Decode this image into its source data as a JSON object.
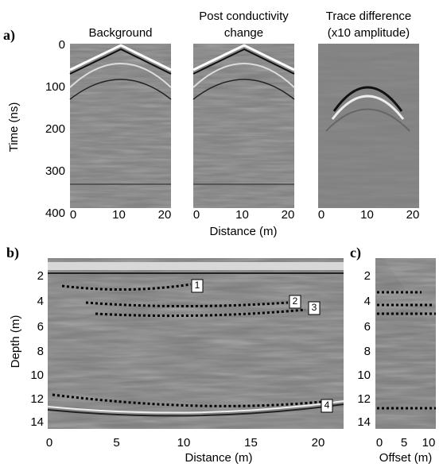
{
  "panel_a": {
    "label": "a)",
    "y_label": "Time (ns)",
    "x_label": "Distance (m)",
    "y_ticks": [
      "0",
      "100",
      "200",
      "300",
      "400"
    ],
    "panels": [
      {
        "title": [
          "Background"
        ],
        "x_ticks": [
          "0",
          "10",
          "20"
        ]
      },
      {
        "title": [
          "Post conductivity",
          "change"
        ],
        "x_ticks": [
          "0",
          "10",
          "20"
        ]
      },
      {
        "title": [
          "Trace difference",
          "(x10 amplitude)"
        ],
        "x_ticks": [
          "0",
          "10",
          "20"
        ]
      }
    ]
  },
  "panel_b": {
    "label": "b)",
    "y_label": "Depth (m)",
    "x_label": "Distance (m)",
    "y_ticks": [
      "2",
      "4",
      "6",
      "8",
      "10",
      "12",
      "14"
    ],
    "x_ticks": [
      "0",
      "5",
      "10",
      "15",
      "20"
    ],
    "markers": [
      "1",
      "2",
      "3",
      "4"
    ]
  },
  "panel_c": {
    "label": "c)",
    "x_label": "Offset (m)",
    "y_ticks": [
      "2",
      "4",
      "6",
      "8",
      "10",
      "12",
      "14"
    ],
    "x_ticks": [
      "0",
      "5",
      "10"
    ]
  }
}
